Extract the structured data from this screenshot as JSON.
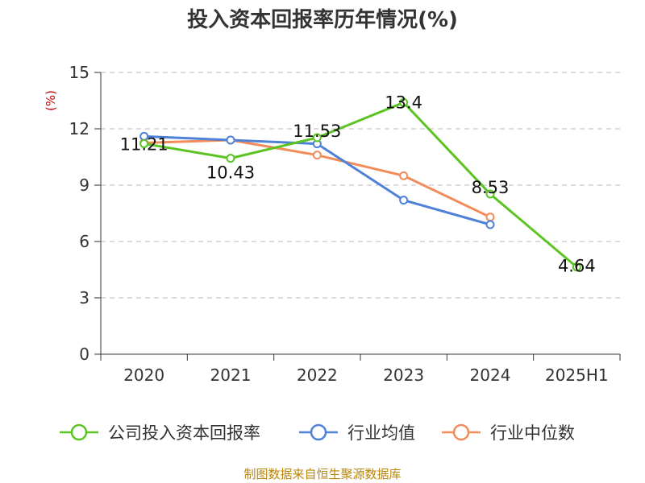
{
  "title": "投入资本回报率历年情况(%)",
  "source": "制图数据来自恒生聚源数据库",
  "chart_data": {
    "type": "line",
    "title": "投入资本回报率历年情况(%)",
    "ylabel": "(%)",
    "xlabel": "",
    "categories": [
      "2020",
      "2021",
      "2022",
      "2023",
      "2024",
      "2025H1"
    ],
    "ylim": [
      0,
      15
    ],
    "yticks": [
      0,
      3,
      6,
      9,
      12,
      15
    ],
    "grid": true,
    "legend_position": "bottom",
    "series": [
      {
        "name": "公司投入资本回报率",
        "color": "#5bc423",
        "values": [
          11.21,
          10.43,
          11.53,
          13.4,
          8.53,
          4.64
        ],
        "labels": [
          "11.21",
          "10.43",
          "11.53",
          "13.4",
          "8.53",
          "4.64"
        ]
      },
      {
        "name": "行业均值",
        "color": "#4f81d9",
        "values": [
          11.6,
          11.4,
          11.2,
          8.2,
          6.9,
          null
        ]
      },
      {
        "name": "行业中位数",
        "color": "#f28c5a",
        "values": [
          11.25,
          11.4,
          10.6,
          9.5,
          7.3,
          null
        ]
      }
    ]
  }
}
